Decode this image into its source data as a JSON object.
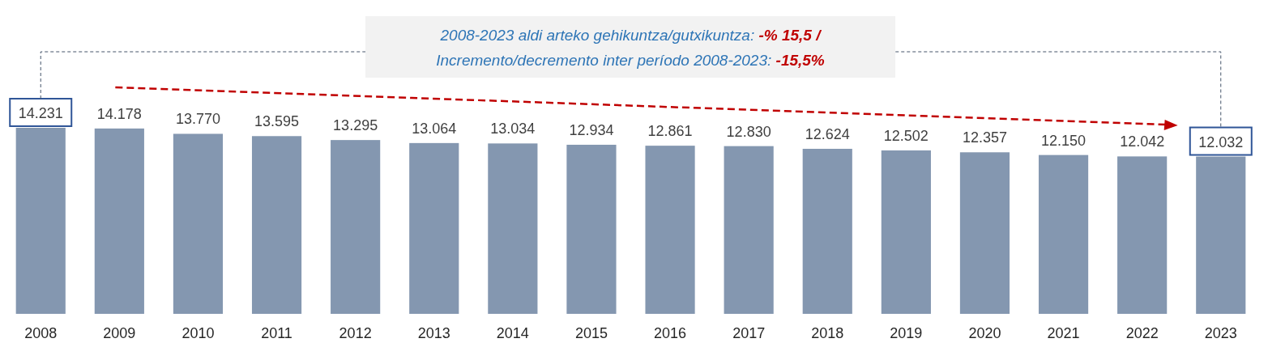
{
  "chart_data": {
    "type": "bar",
    "categories": [
      "2008",
      "2009",
      "2010",
      "2011",
      "2012",
      "2013",
      "2014",
      "2015",
      "2016",
      "2017",
      "2018",
      "2019",
      "2020",
      "2021",
      "2022",
      "2023"
    ],
    "values": [
      14231,
      14178,
      13770,
      13595,
      13295,
      13064,
      13034,
      12934,
      12861,
      12830,
      12624,
      12502,
      12357,
      12150,
      12042,
      12032
    ],
    "value_labels": [
      "14.231",
      "14.178",
      "13.770",
      "13.595",
      "13.295",
      "13.064",
      "13.034",
      "12.934",
      "12.861",
      "12.830",
      "12.624",
      "12.502",
      "12.357",
      "12.150",
      "12.042",
      "12.032"
    ],
    "color": "#8497b0",
    "annotations": [
      "2008-2023 aldi arteko gehikuntza/gutxikuntza: ",
      "-% 15,5 /",
      "Incremento/decremento inter período 2008-2023:  ",
      "-15,5%"
    ]
  }
}
